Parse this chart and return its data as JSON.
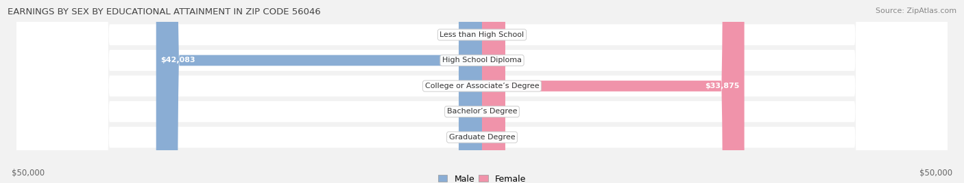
{
  "title": "EARNINGS BY SEX BY EDUCATIONAL ATTAINMENT IN ZIP CODE 56046",
  "source": "Source: ZipAtlas.com",
  "categories": [
    "Less than High School",
    "High School Diploma",
    "College or Associate’s Degree",
    "Bachelor’s Degree",
    "Graduate Degree"
  ],
  "male_values": [
    0,
    42083,
    0,
    0,
    0
  ],
  "female_values": [
    0,
    0,
    33875,
    0,
    0
  ],
  "max_value": 50000,
  "male_color": "#8aadd4",
  "female_color": "#f093aa",
  "bg_color": "#f2f2f2",
  "row_bg_color": "#e8e8e8",
  "row_alt_color": "#efefef",
  "label_color": "#555555",
  "value_label_color": "#666666",
  "xlabel_left": "$50,000",
  "xlabel_right": "$50,000",
  "legend_male": "Male",
  "legend_female": "Female",
  "title_fontsize": 9.5,
  "source_fontsize": 8,
  "bar_label_fontsize": 8,
  "category_fontsize": 8,
  "axis_label_fontsize": 8.5
}
